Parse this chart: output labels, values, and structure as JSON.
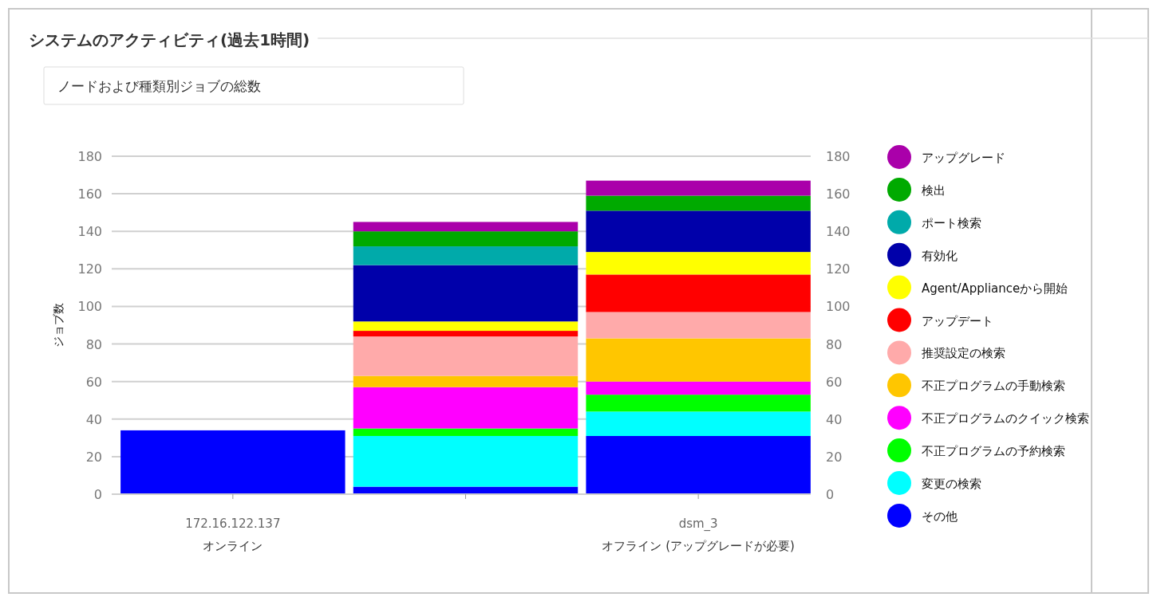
{
  "chart_data": {
    "type": "bar",
    "stacked": true,
    "title": "システムのアクティビティ(過去1時間)",
    "subtitle": "ノードおよび種類別ジョブの総数",
    "ylabel": "ジョブ数",
    "categories": [
      "172.16.122.137\nオンライン",
      null,
      "dsm_3\nオフライン (アップグレードが必要)"
    ],
    "ylim": [
      0,
      180
    ],
    "yticks": [
      0,
      20,
      40,
      60,
      80,
      100,
      120,
      140,
      160,
      180
    ],
    "y2lim": [
      0,
      180
    ],
    "y2ticks": [
      0,
      20,
      40,
      60,
      80,
      100,
      120,
      140,
      160,
      180
    ],
    "grid": "y",
    "legend": "right",
    "series": [
      {
        "name": "その他",
        "color": "#0000ff",
        "values": [
          34,
          4,
          31
        ]
      },
      {
        "name": "変更の検索",
        "color": "#00ffff",
        "values": [
          null,
          27,
          13
        ]
      },
      {
        "name": "不正プログラムの予約検索",
        "color": "#00ff00",
        "values": [
          null,
          4,
          9
        ]
      },
      {
        "name": "不正プログラムのクイック検索",
        "color": "#ff00ff",
        "values": [
          null,
          22,
          7
        ]
      },
      {
        "name": "不正プログラムの手動検索",
        "color": "#ffc600",
        "values": [
          null,
          6,
          23
        ]
      },
      {
        "name": "推奨設定の検索",
        "color": "#ffaaaa",
        "values": [
          null,
          21,
          14
        ]
      },
      {
        "name": "アップデート",
        "color": "#ff0000",
        "values": [
          null,
          3,
          20
        ]
      },
      {
        "name": "Agent/Applianceから開始",
        "color": "#ffff00",
        "values": [
          null,
          5,
          12
        ]
      },
      {
        "name": "有効化",
        "color": "#0000aa",
        "values": [
          null,
          30,
          22
        ]
      },
      {
        "name": "ポート検索",
        "color": "#00aaaa",
        "values": [
          null,
          10,
          null
        ]
      },
      {
        "name": "検出",
        "color": "#00aa00",
        "values": [
          null,
          8,
          8
        ]
      },
      {
        "name": "アップグレード",
        "color": "#aa00aa",
        "values": [
          null,
          5,
          8
        ]
      }
    ]
  }
}
